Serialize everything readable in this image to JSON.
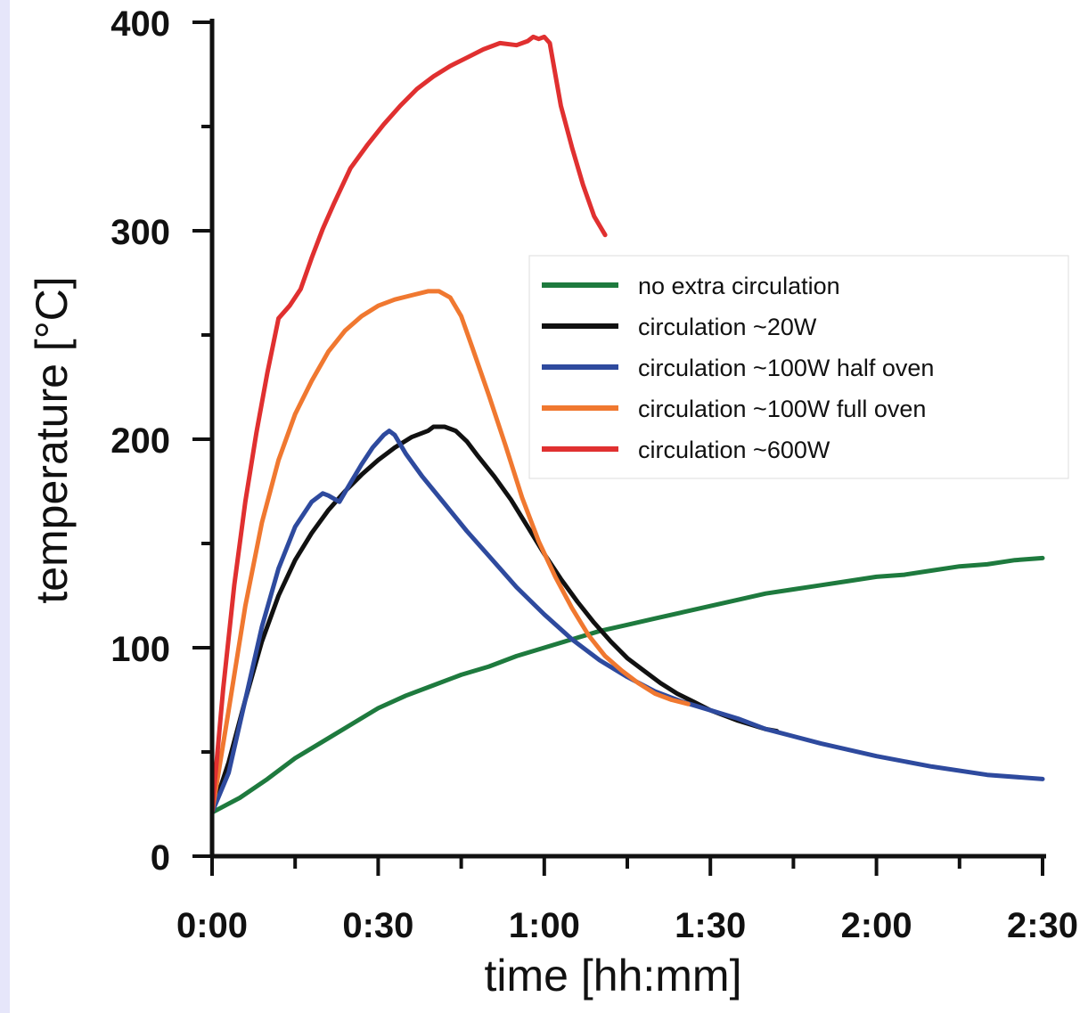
{
  "colors": {
    "background": "#e6e6fa",
    "plot_area": "#ffffff"
  },
  "chart_data": {
    "type": "line",
    "xlabel": "time [hh:mm]",
    "ylabel": "temperature [°C]",
    "x_unit": "minutes",
    "xlim": [
      0,
      150
    ],
    "ylim": [
      0,
      400
    ],
    "x_ticks": [
      {
        "value": 0,
        "label": "0:00"
      },
      {
        "value": 30,
        "label": "0:30"
      },
      {
        "value": 60,
        "label": "1:00"
      },
      {
        "value": 90,
        "label": "1:30"
      },
      {
        "value": 120,
        "label": "2:00"
      },
      {
        "value": 150,
        "label": "2:30"
      }
    ],
    "y_ticks": [
      {
        "value": 0,
        "label": "0"
      },
      {
        "value": 100,
        "label": "100"
      },
      {
        "value": 200,
        "label": "200"
      },
      {
        "value": 300,
        "label": "300"
      },
      {
        "value": 400,
        "label": "400"
      }
    ],
    "grid": false,
    "legend_position": "right",
    "series": [
      {
        "name": "no extra circulation",
        "color": "#1e7a3e",
        "x": [
          0,
          5,
          10,
          15,
          20,
          25,
          30,
          35,
          40,
          45,
          50,
          55,
          60,
          65,
          70,
          75,
          80,
          85,
          90,
          95,
          100,
          105,
          110,
          115,
          120,
          125,
          130,
          135,
          140,
          145,
          150
        ],
        "y": [
          21,
          28,
          37,
          47,
          55,
          63,
          71,
          77,
          82,
          87,
          91,
          96,
          100,
          104,
          108,
          111,
          114,
          117,
          120,
          123,
          126,
          128,
          130,
          132,
          134,
          135,
          137,
          139,
          140,
          142,
          143
        ]
      },
      {
        "name": "circulation ~20W",
        "color": "#111111",
        "x": [
          0,
          3,
          6,
          9,
          12,
          15,
          18,
          21,
          24,
          27,
          30,
          33,
          36,
          39,
          40,
          42,
          44,
          46,
          48,
          51,
          54,
          57,
          60,
          63,
          66,
          69,
          72,
          75,
          78,
          81,
          84,
          87,
          90,
          95,
          100,
          102
        ],
        "y": [
          21,
          45,
          75,
          103,
          125,
          142,
          155,
          166,
          175,
          183,
          190,
          196,
          201,
          204,
          206,
          206,
          204,
          199,
          192,
          182,
          171,
          158,
          145,
          133,
          122,
          112,
          103,
          95,
          89,
          83,
          78,
          74,
          70,
          65,
          61,
          60
        ]
      },
      {
        "name": "circulation ~100W half oven",
        "color": "#2e4a9e",
        "x": [
          0,
          3,
          6,
          9,
          12,
          15,
          18,
          20,
          21,
          23,
          25,
          27,
          29,
          31,
          32,
          33,
          35,
          38,
          42,
          46,
          50,
          55,
          60,
          65,
          70,
          75,
          80,
          85,
          90,
          95,
          100,
          110,
          120,
          130,
          140,
          150
        ],
        "y": [
          21,
          40,
          75,
          110,
          138,
          158,
          170,
          174,
          173,
          170,
          179,
          188,
          196,
          202,
          204,
          202,
          193,
          182,
          169,
          156,
          144,
          129,
          116,
          104,
          94,
          86,
          79,
          74,
          70,
          66,
          61,
          54,
          48,
          43,
          39,
          37
        ]
      },
      {
        "name": "circulation ~100W full oven",
        "color": "#f07830",
        "x": [
          0,
          3,
          6,
          9,
          12,
          15,
          18,
          21,
          24,
          27,
          30,
          33,
          36,
          39,
          41,
          43,
          45,
          47,
          50,
          53,
          56,
          59,
          62,
          65,
          68,
          71,
          74,
          77,
          80,
          83,
          86
        ],
        "y": [
          21,
          70,
          120,
          160,
          190,
          212,
          228,
          242,
          252,
          259,
          264,
          267,
          269,
          271,
          271,
          268,
          259,
          244,
          221,
          197,
          172,
          151,
          134,
          119,
          106,
          96,
          89,
          83,
          78,
          75,
          73
        ]
      },
      {
        "name": "circulation ~600W",
        "color": "#e03030",
        "x": [
          0,
          2,
          4,
          6,
          8,
          10,
          12,
          14,
          16,
          18,
          20,
          22,
          25,
          28,
          31,
          34,
          37,
          40,
          43,
          46,
          49,
          52,
          55,
          57,
          58,
          59,
          60,
          61,
          63,
          65,
          67,
          69,
          71
        ],
        "y": [
          21,
          80,
          130,
          170,
          203,
          232,
          258,
          264,
          272,
          287,
          301,
          313,
          330,
          341,
          351,
          360,
          368,
          374,
          379,
          383,
          387,
          390,
          389,
          391,
          393,
          392,
          393,
          390,
          360,
          340,
          322,
          307,
          298
        ]
      }
    ]
  }
}
